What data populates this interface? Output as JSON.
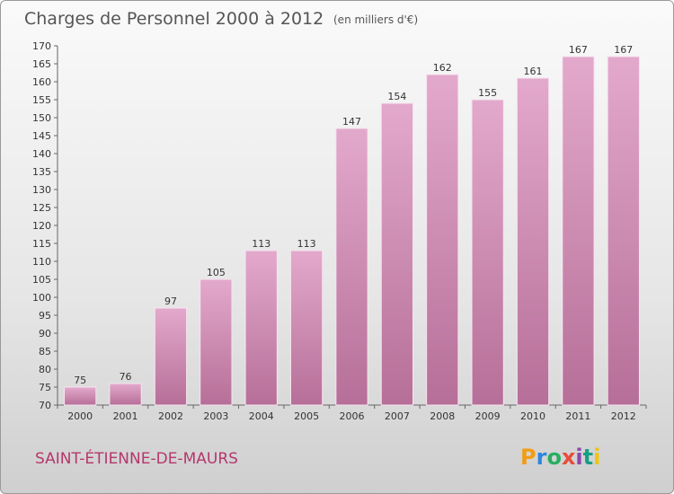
{
  "chart_data": {
    "type": "bar",
    "title": "Charges de Personnel 2000 à 2012",
    "subtitle": "(en milliers d'€)",
    "categories": [
      "2000",
      "2001",
      "2002",
      "2003",
      "2004",
      "2005",
      "2006",
      "2007",
      "2008",
      "2009",
      "2010",
      "2011",
      "2012"
    ],
    "values": [
      75,
      76,
      97,
      105,
      113,
      113,
      147,
      154,
      162,
      155,
      161,
      167,
      167
    ],
    "ylim": [
      70,
      170
    ],
    "ytick_step": 5,
    "grid": false,
    "bar_color": "#d28ab4"
  },
  "footer": {
    "town": "SAINT-ÉTIENNE-DE-MAURS",
    "logo_text": "Proxiti",
    "logo_colors": [
      "#f39c12",
      "#2e86de",
      "#27ae60",
      "#e74c3c",
      "#8e44ad",
      "#16a085",
      "#f1c40f"
    ]
  }
}
